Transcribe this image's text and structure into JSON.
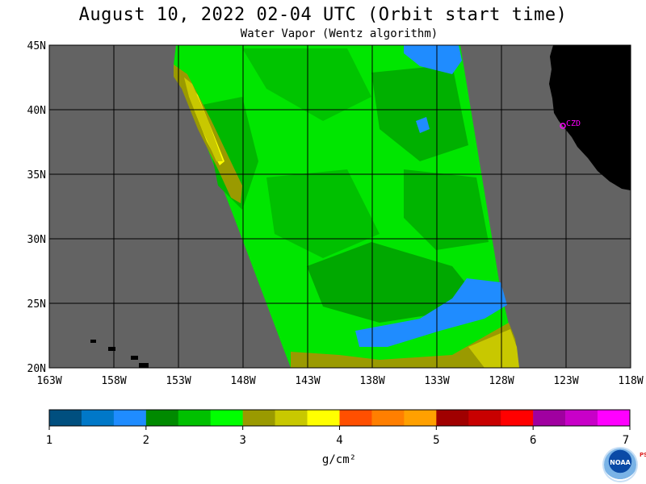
{
  "title": "August 10, 2022  02-04 UTC  (Orbit start time)",
  "subtitle": "Water Vapor (Wentz algorithm)",
  "lat_labels": [
    "45N",
    "40N",
    "35N",
    "30N",
    "25N",
    "20N"
  ],
  "lon_labels": [
    "163W",
    "158W",
    "153W",
    "148W",
    "143W",
    "138W",
    "133W",
    "128W",
    "123W",
    "118W"
  ],
  "colorbar": {
    "tick_labels": [
      "1",
      "2",
      "3",
      "4",
      "5",
      "6",
      "7"
    ],
    "unit": "g/cm²",
    "colors": [
      "#004f7f",
      "#0078c8",
      "#1f8cff",
      "#008a00",
      "#00c000",
      "#00ff00",
      "#9a9a00",
      "#c8c800",
      "#ffff00",
      "#ff4f00",
      "#ff7f00",
      "#ffa000",
      "#a00000",
      "#c80000",
      "#ff0000",
      "#a000a0",
      "#c800c8",
      "#ff00ff"
    ]
  },
  "station_label": "CZD",
  "logo_label": "NOAA",
  "logo_side_text": "PSL",
  "colors": {
    "land": "#000000",
    "no_data": "#636363",
    "grid": "#000000",
    "station": "#ff00ff"
  }
}
